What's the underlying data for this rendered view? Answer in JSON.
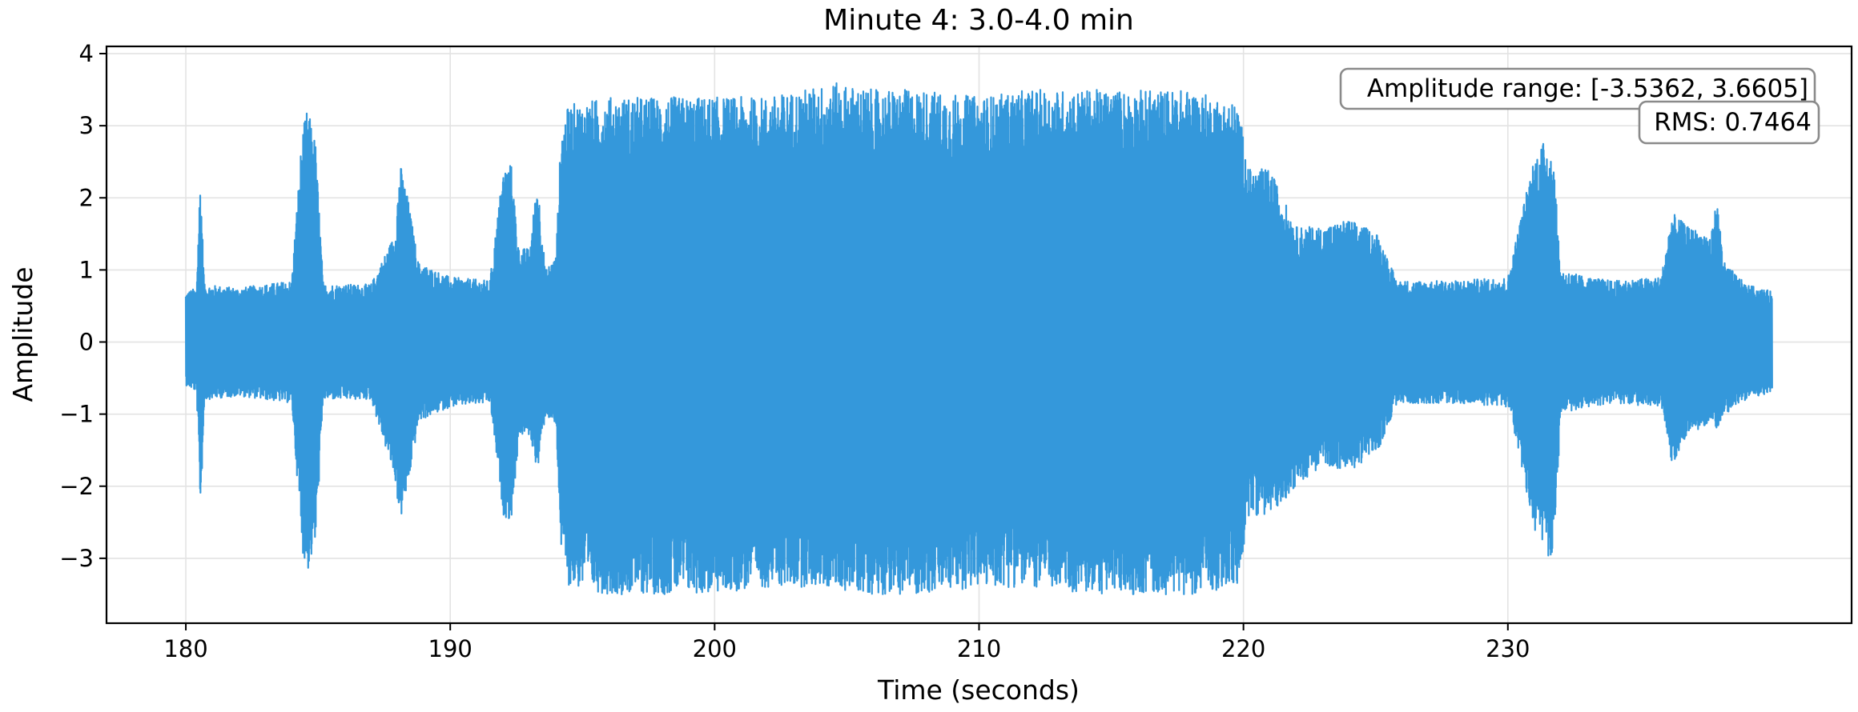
{
  "chart_data": {
    "type": "line",
    "title": "Minute 4: 3.0-4.0 min",
    "xlabel": "Time (seconds)",
    "ylabel": "Amplitude",
    "xlim": [
      177,
      243
    ],
    "ylim": [
      -3.9,
      4.1
    ],
    "xticks": [
      180,
      190,
      200,
      210,
      220,
      230
    ],
    "xtick_labels": [
      "180",
      "190",
      "200",
      "210",
      "220",
      "230"
    ],
    "yticks": [
      -3,
      -2,
      -1,
      0,
      1,
      2,
      3,
      4
    ],
    "ytick_labels": [
      "−3",
      "−2",
      "−1",
      "0",
      "1",
      "2",
      "3",
      "4"
    ],
    "grid": true,
    "legend": "none",
    "series": [
      {
        "color": "#3498db",
        "sample_range": [
          180,
          239.99
        ],
        "envelope_upper": [
          [
            180,
            0.7
          ],
          [
            180.4,
            0.75
          ],
          [
            180.55,
            2.35
          ],
          [
            180.7,
            0.8
          ],
          [
            182,
            0.75
          ],
          [
            184,
            0.85
          ],
          [
            184.4,
            2.9
          ],
          [
            184.6,
            3.25
          ],
          [
            184.9,
            2.8
          ],
          [
            185.2,
            0.8
          ],
          [
            187,
            0.8
          ],
          [
            187.9,
            1.5
          ],
          [
            188.1,
            2.5
          ],
          [
            188.4,
            2.0
          ],
          [
            188.8,
            1.1
          ],
          [
            190,
            0.9
          ],
          [
            191.5,
            0.85
          ],
          [
            192,
            2.4
          ],
          [
            192.3,
            2.5
          ],
          [
            192.6,
            1.3
          ],
          [
            193,
            1.3
          ],
          [
            193.3,
            2.3
          ],
          [
            193.6,
            1.0
          ],
          [
            194.0,
            1.2
          ],
          [
            194.2,
            3.0
          ],
          [
            194.5,
            3.3
          ],
          [
            196,
            3.4
          ],
          [
            198,
            3.4
          ],
          [
            200,
            3.4
          ],
          [
            202,
            3.4
          ],
          [
            204.5,
            3.6
          ],
          [
            206,
            3.5
          ],
          [
            208,
            3.5
          ],
          [
            210,
            3.4
          ],
          [
            212,
            3.5
          ],
          [
            214,
            3.5
          ],
          [
            216,
            3.5
          ],
          [
            218,
            3.5
          ],
          [
            219.8,
            3.3
          ],
          [
            220.2,
            2.4
          ],
          [
            221,
            2.4
          ],
          [
            222,
            1.6
          ],
          [
            223,
            1.6
          ],
          [
            224,
            1.7
          ],
          [
            225.1,
            1.5
          ],
          [
            225.8,
            0.85
          ],
          [
            228,
            0.85
          ],
          [
            230,
            0.9
          ],
          [
            231.0,
            2.6
          ],
          [
            231.4,
            2.8
          ],
          [
            231.7,
            2.7
          ],
          [
            232.0,
            1.0
          ],
          [
            233,
            0.9
          ],
          [
            234,
            0.85
          ],
          [
            235.8,
            0.9
          ],
          [
            236.2,
            1.8
          ],
          [
            236.8,
            1.6
          ],
          [
            237.7,
            1.5
          ],
          [
            237.9,
            2.0
          ],
          [
            238.2,
            1.1
          ],
          [
            239,
            0.8
          ],
          [
            240,
            0.7
          ]
        ],
        "envelope_lower": [
          [
            180,
            -0.6
          ],
          [
            180.4,
            -0.7
          ],
          [
            180.55,
            -2.35
          ],
          [
            180.7,
            -0.8
          ],
          [
            182,
            -0.75
          ],
          [
            184,
            -0.85
          ],
          [
            184.4,
            -2.9
          ],
          [
            184.6,
            -3.2
          ],
          [
            184.9,
            -2.8
          ],
          [
            185.2,
            -0.8
          ],
          [
            187,
            -0.8
          ],
          [
            187.9,
            -1.9
          ],
          [
            188.1,
            -2.5
          ],
          [
            188.4,
            -2.0
          ],
          [
            188.8,
            -1.1
          ],
          [
            190,
            -0.9
          ],
          [
            191.5,
            -0.85
          ],
          [
            192,
            -2.4
          ],
          [
            192.3,
            -2.5
          ],
          [
            192.6,
            -1.3
          ],
          [
            193,
            -1.3
          ],
          [
            193.3,
            -1.8
          ],
          [
            193.6,
            -1.0
          ],
          [
            194.0,
            -1.2
          ],
          [
            194.2,
            -3.0
          ],
          [
            194.5,
            -3.4
          ],
          [
            196,
            -3.5
          ],
          [
            198,
            -3.5
          ],
          [
            200,
            -3.5
          ],
          [
            202,
            -3.4
          ],
          [
            204,
            -3.4
          ],
          [
            206,
            -3.5
          ],
          [
            208,
            -3.5
          ],
          [
            210,
            -3.4
          ],
          [
            212,
            -3.4
          ],
          [
            214,
            -3.5
          ],
          [
            216,
            -3.5
          ],
          [
            218,
            -3.5
          ],
          [
            219.8,
            -3.4
          ],
          [
            220.2,
            -2.4
          ],
          [
            221,
            -2.4
          ],
          [
            222,
            -2.0
          ],
          [
            223,
            -1.7
          ],
          [
            224,
            -1.8
          ],
          [
            225.1,
            -1.5
          ],
          [
            225.8,
            -0.85
          ],
          [
            228,
            -0.85
          ],
          [
            230,
            -0.9
          ],
          [
            231.0,
            -2.6
          ],
          [
            231.4,
            -2.9
          ],
          [
            231.7,
            -3.1
          ],
          [
            232.0,
            -1.0
          ],
          [
            233,
            -0.9
          ],
          [
            234,
            -0.85
          ],
          [
            235.8,
            -0.9
          ],
          [
            236.2,
            -1.7
          ],
          [
            236.8,
            -1.3
          ],
          [
            237.7,
            -1.1
          ],
          [
            237.9,
            -1.2
          ],
          [
            238.2,
            -1.0
          ],
          [
            239,
            -0.8
          ],
          [
            240,
            -0.7
          ]
        ]
      }
    ],
    "annotations": [
      {
        "text": "Amplitude range: [-3.5362, 3.6605]",
        "position": "top-right"
      },
      {
        "text": "RMS: 0.7464",
        "position": "top-right"
      }
    ]
  }
}
